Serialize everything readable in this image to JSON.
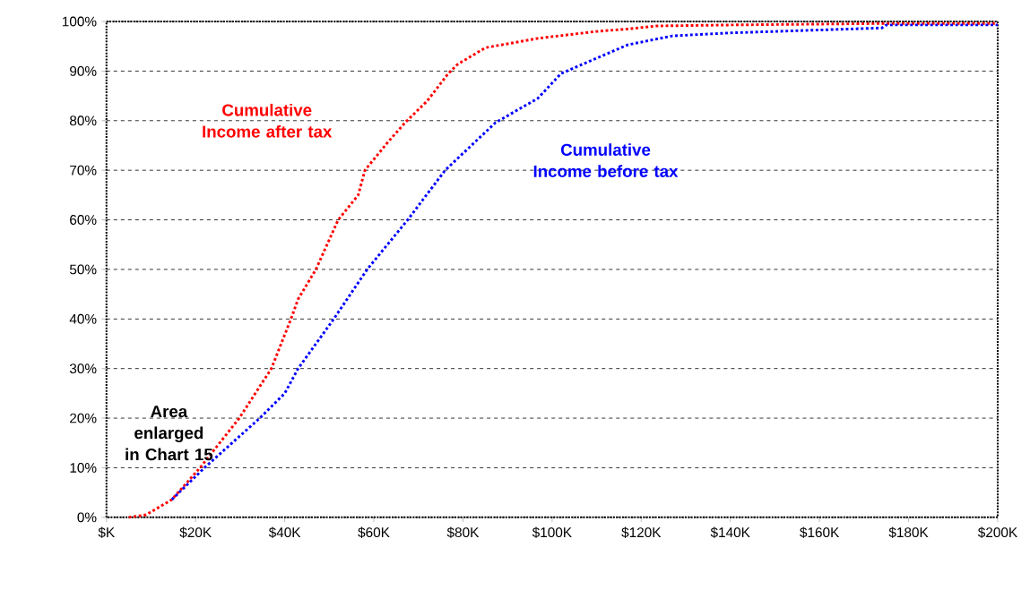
{
  "chart_data": {
    "type": "line",
    "xlim": [
      0,
      200
    ],
    "ylim": [
      0,
      100
    ],
    "xticks": [
      {
        "value": 0,
        "label": "$K"
      },
      {
        "value": 20,
        "label": "$20K"
      },
      {
        "value": 40,
        "label": "$40K"
      },
      {
        "value": 60,
        "label": "$60K"
      },
      {
        "value": 80,
        "label": "$80K"
      },
      {
        "value": 100,
        "label": "$100K"
      },
      {
        "value": 120,
        "label": "$120K"
      },
      {
        "value": 140,
        "label": "$140K"
      },
      {
        "value": 160,
        "label": "$160K"
      },
      {
        "value": 180,
        "label": "$180K"
      },
      {
        "value": 200,
        "label": "$200K"
      }
    ],
    "yticks": [
      {
        "value": 0,
        "label": "0%"
      },
      {
        "value": 10,
        "label": "10%"
      },
      {
        "value": 20,
        "label": "20%"
      },
      {
        "value": 30,
        "label": "30%"
      },
      {
        "value": 40,
        "label": "40%"
      },
      {
        "value": 50,
        "label": "50%"
      },
      {
        "value": 60,
        "label": "60%"
      },
      {
        "value": 70,
        "label": "70%"
      },
      {
        "value": 80,
        "label": "80%"
      },
      {
        "value": 90,
        "label": "90%"
      },
      {
        "value": 100,
        "label": "100%"
      }
    ],
    "grid": "y",
    "marker": "none",
    "line_style": "dotted",
    "series": [
      {
        "name": "Cumulative Income after tax",
        "color": "#ff0000",
        "x": [
          5,
          8.9,
          14.7,
          21,
          29.8,
          37,
          41.4,
          43,
          47,
          52,
          56.5,
          58,
          63,
          67,
          72,
          76.7,
          78.7,
          85,
          96.8,
          110,
          117,
          123.5,
          140,
          175,
          200
        ],
        "values": [
          0,
          0.5,
          3.6,
          10,
          20,
          30,
          40,
          44,
          50,
          60,
          65,
          70,
          75.5,
          79.6,
          84,
          89.5,
          91.3,
          94.7,
          96.6,
          98,
          98.5,
          99.1,
          99.3,
          99.6,
          99.6
        ]
      },
      {
        "name": "Cumulative Income before tax",
        "color": "#0000ff",
        "x": [
          14.7,
          22,
          34.4,
          40,
          43,
          51,
          58.5,
          67.6,
          76,
          87.3,
          96.8,
          102,
          110,
          117,
          127,
          140,
          174,
          175,
          200
        ],
        "values": [
          3.6,
          10,
          20,
          25,
          30,
          40,
          50,
          60,
          70,
          79.6,
          84.5,
          89.5,
          92.6,
          95.3,
          97.1,
          97.7,
          98.7,
          99.3,
          99.3
        ]
      }
    ],
    "annotations": [
      "Area enlarged in Chart 15"
    ]
  }
}
